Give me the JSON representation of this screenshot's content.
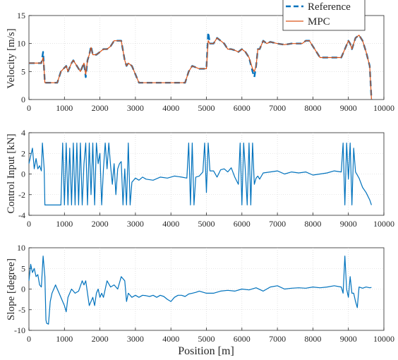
{
  "colors": {
    "reference": "#0072BD",
    "mpc": "#D95319",
    "signal": "#0072BD",
    "axis": "#262626",
    "grid": "#d0d0d0"
  },
  "chart_data": [
    {
      "type": "line",
      "ylabel": "Velocity [m/s]",
      "xlabel": "",
      "xlim": [
        0,
        10000
      ],
      "ylim": [
        0,
        15
      ],
      "xticks": [
        "0",
        "1000",
        "2000",
        "3000",
        "4000",
        "5000",
        "6000",
        "7000",
        "8000",
        "9000",
        "10000"
      ],
      "yticks": [
        "0",
        "5",
        "10",
        "15"
      ],
      "grid": true,
      "legend_position": "top-right",
      "series": [
        {
          "name": "Reference",
          "style": "dashed",
          "x": [
            0,
            350,
            400,
            420,
            450,
            550,
            800,
            900,
            1050,
            1100,
            1200,
            1250,
            1350,
            1450,
            1550,
            1600,
            1650,
            1700,
            1750,
            1800,
            1900,
            2000,
            2100,
            2200,
            2300,
            2400,
            2500,
            2600,
            2700,
            2750,
            2800,
            2900,
            3000,
            3100,
            3200,
            3500,
            4000,
            4400,
            4500,
            4600,
            4800,
            4900,
            5000,
            5050,
            5100,
            5200,
            5300,
            5400,
            5500,
            5600,
            5700,
            5800,
            5900,
            6000,
            6100,
            6200,
            6300,
            6350,
            6400,
            6450,
            6500,
            6600,
            6700,
            6800,
            7000,
            7200,
            7400,
            7600,
            7700,
            7800,
            7900,
            8000,
            8200,
            8400,
            8600,
            8800,
            8900,
            9000,
            9050,
            9100,
            9200,
            9300,
            9400,
            9500,
            9600,
            9650
          ],
          "y": [
            6.5,
            6.5,
            8.5,
            6.2,
            3,
            3,
            3,
            5,
            6,
            5,
            6.5,
            7,
            6,
            5,
            6.5,
            4,
            7,
            8,
            9.5,
            8,
            8,
            8.5,
            9,
            9,
            9.5,
            10.5,
            10.5,
            10.5,
            7,
            6,
            6.5,
            6,
            4.5,
            3,
            3,
            3,
            3,
            3,
            5,
            6,
            5.5,
            5.5,
            5.5,
            12,
            10,
            10,
            11,
            10.5,
            10,
            9,
            9,
            8.8,
            8.5,
            9,
            8.5,
            7.5,
            5,
            4,
            6,
            9,
            9,
            10.5,
            10,
            10.3,
            10,
            9.8,
            10,
            10,
            10,
            10.5,
            10.5,
            9.5,
            7.5,
            7.5,
            7.5,
            7.5,
            9,
            10.5,
            10,
            9,
            11,
            11.5,
            10.5,
            8.5,
            6,
            0
          ]
        },
        {
          "name": "MPC",
          "style": "solid",
          "x": [
            0,
            350,
            400,
            420,
            450,
            550,
            800,
            900,
            1050,
            1100,
            1200,
            1250,
            1350,
            1450,
            1550,
            1600,
            1650,
            1700,
            1750,
            1800,
            1900,
            2000,
            2100,
            2200,
            2300,
            2400,
            2500,
            2600,
            2700,
            2750,
            2800,
            2900,
            3000,
            3100,
            3200,
            3500,
            4000,
            4400,
            4500,
            4600,
            4800,
            4900,
            5000,
            5050,
            5100,
            5200,
            5300,
            5400,
            5500,
            5600,
            5700,
            5800,
            5900,
            6000,
            6100,
            6200,
            6300,
            6350,
            6400,
            6450,
            6500,
            6600,
            6700,
            6800,
            7000,
            7200,
            7400,
            7600,
            7700,
            7800,
            7900,
            8000,
            8200,
            8400,
            8600,
            8800,
            8900,
            9000,
            9050,
            9100,
            9200,
            9300,
            9400,
            9500,
            9600,
            9650
          ],
          "y": [
            6.5,
            6.5,
            7.5,
            6.2,
            3,
            3,
            3,
            5,
            6,
            5,
            6.5,
            7,
            6,
            5,
            6.5,
            4.5,
            7,
            8,
            9.3,
            8,
            8,
            8.5,
            9,
            9,
            9.5,
            10.5,
            10.5,
            10.5,
            7,
            6,
            6.5,
            6,
            4.5,
            3,
            3,
            3,
            3,
            3,
            5,
            6,
            5.5,
            5.5,
            5.5,
            10.5,
            10,
            10,
            11,
            10.5,
            10,
            9,
            9,
            8.8,
            8.5,
            9,
            8.5,
            7.5,
            5.5,
            5,
            6,
            9,
            9,
            10.5,
            10,
            10.3,
            10,
            9.8,
            10,
            10,
            10,
            10.5,
            10.5,
            9.5,
            7.5,
            7.5,
            7.5,
            7.5,
            9,
            10.5,
            10,
            9,
            11,
            11.5,
            10.5,
            8.5,
            6,
            0
          ]
        }
      ]
    },
    {
      "type": "line",
      "ylabel": "Control Input [kN]",
      "xlabel": "",
      "xlim": [
        0,
        10000
      ],
      "ylim": [
        -4,
        4
      ],
      "xticks": [
        "0",
        "1000",
        "2000",
        "3000",
        "4000",
        "5000",
        "6000",
        "7000",
        "8000",
        "9000",
        "10000"
      ],
      "yticks": [
        "-4",
        "-2",
        "0",
        "2",
        "4"
      ],
      "grid": true,
      "series": [
        {
          "name": "",
          "x": [
            0,
            100,
            150,
            200,
            250,
            300,
            350,
            380,
            400,
            430,
            450,
            480,
            500,
            600,
            700,
            800,
            900,
            950,
            1000,
            1050,
            1100,
            1150,
            1200,
            1250,
            1300,
            1350,
            1400,
            1450,
            1500,
            1550,
            1600,
            1650,
            1700,
            1750,
            1800,
            1850,
            1900,
            1950,
            2000,
            2050,
            2100,
            2150,
            2200,
            2250,
            2300,
            2350,
            2400,
            2450,
            2500,
            2550,
            2600,
            2650,
            2700,
            2750,
            2800,
            2850,
            2900,
            3000,
            3100,
            3200,
            3300,
            3500,
            3700,
            3900,
            4100,
            4300,
            4450,
            4500,
            4550,
            4600,
            4650,
            4700,
            4800,
            4900,
            4950,
            5000,
            5050,
            5100,
            5200,
            5300,
            5400,
            5500,
            5600,
            5700,
            5800,
            5900,
            5950,
            6000,
            6050,
            6100,
            6150,
            6200,
            6250,
            6300,
            6350,
            6400,
            6450,
            6500,
            6600,
            6800,
            7000,
            7200,
            7400,
            7600,
            7800,
            8000,
            8200,
            8400,
            8600,
            8800,
            8850,
            8900,
            8950,
            9000,
            9050,
            9100,
            9150,
            9200,
            9300,
            9400,
            9500,
            9600,
            9650
          ],
          "y": [
            1,
            2.5,
            0.5,
            1.5,
            0.5,
            0.8,
            0.3,
            3,
            2,
            0.5,
            -3,
            -3,
            -3,
            -3,
            -3,
            -3,
            -3,
            3,
            -3,
            3,
            -3,
            2.5,
            -3,
            3,
            -3,
            3,
            -3,
            3,
            -3,
            1,
            3,
            -3,
            3,
            -2,
            3,
            -3,
            3,
            1,
            2,
            -3,
            0.5,
            3,
            0.5,
            3,
            0.8,
            -1,
            1,
            -2,
            0.5,
            1,
            1.2,
            -3,
            0.5,
            -3,
            3,
            -3,
            -0.8,
            -0.4,
            -0.6,
            -0.3,
            -0.5,
            -0.6,
            -0.3,
            -0.4,
            -0.2,
            -0.3,
            -0.4,
            3,
            -3,
            3,
            -3,
            -0.3,
            -0.2,
            0.2,
            3,
            -1.8,
            3,
            0.3,
            0.3,
            -0.3,
            0.4,
            0.5,
            0.2,
            0.6,
            -0.3,
            -1,
            3,
            -3,
            3,
            0.2,
            -3,
            3,
            -3,
            3,
            -1,
            -0.4,
            -0.2,
            -0.5,
            0.1,
            0.2,
            0.3,
            0,
            0.2,
            0.1,
            0.2,
            -0.1,
            0,
            0.1,
            0.3,
            0.2,
            3,
            -3,
            3,
            -0.5,
            3,
            -3,
            2.5,
            0.2,
            -0.4,
            -1.3,
            -1.8,
            -2.5,
            -3
          ]
        }
      ]
    },
    {
      "type": "line",
      "ylabel": "Slope [degree]",
      "xlabel": "Position [m]",
      "xlim": [
        0,
        10000
      ],
      "ylim": [
        -10,
        10
      ],
      "xticks": [
        "0",
        "1000",
        "2000",
        "3000",
        "4000",
        "5000",
        "6000",
        "7000",
        "8000",
        "9000",
        "10000"
      ],
      "yticks": [
        "-10",
        "-5",
        "0",
        "5",
        "10"
      ],
      "grid": true,
      "series": [
        {
          "name": "",
          "x": [
            0,
            50,
            100,
            150,
            200,
            250,
            300,
            350,
            400,
            420,
            450,
            480,
            500,
            550,
            600,
            650,
            700,
            750,
            800,
            850,
            900,
            950,
            1000,
            1050,
            1100,
            1150,
            1200,
            1250,
            1300,
            1400,
            1500,
            1550,
            1600,
            1700,
            1800,
            1850,
            1900,
            1950,
            2000,
            2050,
            2100,
            2200,
            2300,
            2400,
            2500,
            2600,
            2700,
            2750,
            2800,
            2900,
            3000,
            3100,
            3200,
            3300,
            3400,
            3500,
            3600,
            3700,
            3800,
            3900,
            4000,
            4100,
            4200,
            4300,
            4400,
            4500,
            4600,
            4700,
            4800,
            5000,
            5200,
            5400,
            5600,
            5800,
            6000,
            6200,
            6400,
            6600,
            6800,
            7000,
            7200,
            7400,
            7600,
            7800,
            8000,
            8200,
            8400,
            8600,
            8800,
            8850,
            8900,
            8950,
            9000,
            9050,
            9100,
            9150,
            9200,
            9250,
            9300,
            9400,
            9500,
            9600,
            9650
          ],
          "y": [
            2,
            6,
            4,
            5,
            3,
            3.5,
            1,
            0.5,
            8,
            6,
            3,
            -7.5,
            -8.3,
            -8.5,
            -3,
            -1,
            0,
            1,
            0,
            -1,
            -2,
            -3,
            -4,
            -5.5,
            -2,
            -1,
            0,
            -0.5,
            -1,
            -0.5,
            2,
            1,
            2,
            -4,
            -2,
            -4,
            -1,
            0,
            -2,
            -1,
            -2,
            2,
            0.5,
            1,
            0,
            3,
            2,
            -3,
            -1,
            -2,
            -1.5,
            -2,
            -1.5,
            -1.6,
            -1.8,
            -1.5,
            -2,
            -1.5,
            -1.8,
            -2.5,
            -3,
            -2,
            -1.5,
            -1.5,
            -1.8,
            -1.2,
            -1,
            -0.8,
            -0.5,
            -1,
            -1,
            -0.5,
            -0.3,
            -0.5,
            0,
            -0.2,
            0.3,
            -0.5,
            0.5,
            0.8,
            0,
            0.2,
            0.3,
            0.2,
            0.5,
            0.3,
            0.5,
            0.8,
            0.5,
            -1,
            8,
            0,
            -2,
            3,
            -1,
            -1,
            -3,
            -4.5,
            0.5,
            0.2,
            0.5,
            0.3,
            0.4
          ]
        }
      ]
    }
  ]
}
